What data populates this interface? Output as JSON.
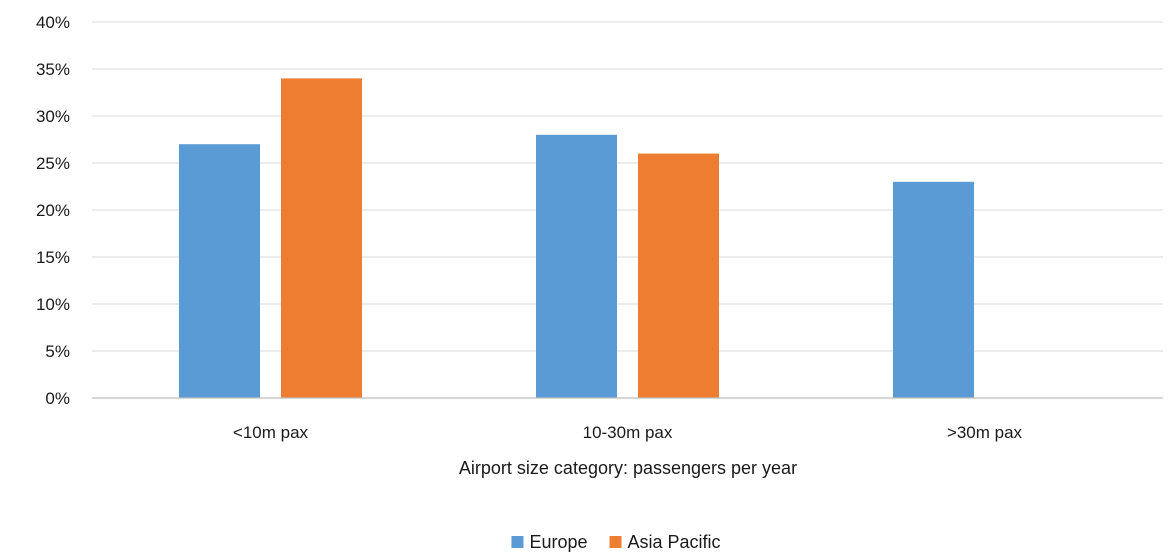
{
  "chart_data": {
    "type": "bar",
    "categories": [
      "<10m pax",
      "10-30m pax",
      ">30m pax"
    ],
    "series": [
      {
        "name": "Europe",
        "color": "#5B9BD5",
        "values": [
          27,
          28,
          23
        ]
      },
      {
        "name": "Asia Pacific",
        "color": "#ED7D31",
        "values": [
          34,
          26,
          null
        ]
      }
    ],
    "title": "",
    "xlabel": "Airport size category: passengers per year",
    "ylabel": "",
    "ylim": [
      0,
      40
    ],
    "yticks": [
      "0%",
      "5%",
      "10%",
      "15%",
      "20%",
      "25%",
      "30%",
      "35%",
      "40%"
    ],
    "grid": true,
    "legend_position": "bottom"
  }
}
